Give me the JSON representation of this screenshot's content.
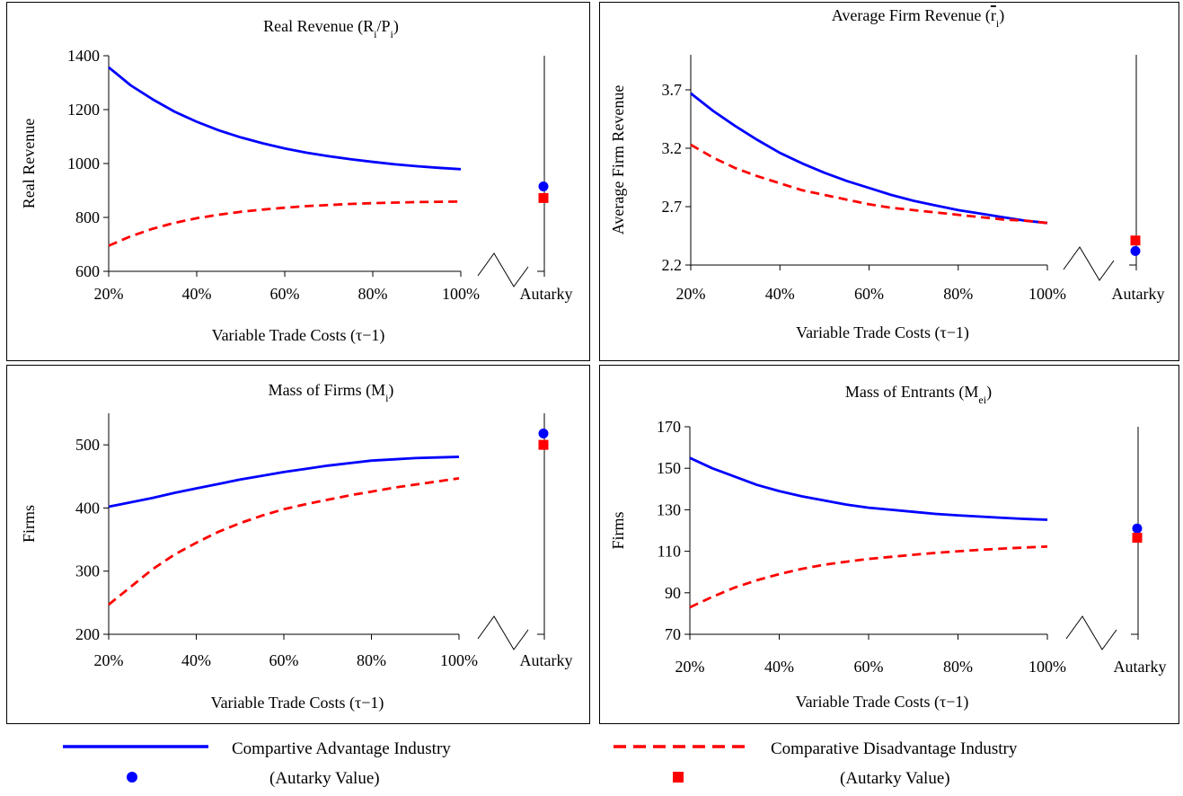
{
  "colors": {
    "advantage": "#0000ff",
    "disadvantage": "#ff0000",
    "axis": "#000000"
  },
  "legend": {
    "advantage_label": "Compartive Advantage Industry",
    "advantage_autarky_label": "(Autarky Value)",
    "disadvantage_label": "Comparative Disadvantage Industry",
    "disadvantage_autarky_label": "(Autarky Value)"
  },
  "chart_data": [
    {
      "id": "real-revenue",
      "type": "line",
      "title": "Real Revenue (R",
      "title_parts": [
        {
          "t": "Real Revenue (R"
        },
        {
          "t": "i",
          "sub": true
        },
        {
          "t": "/P"
        },
        {
          "t": "i",
          "sub": true
        },
        {
          "t": ")"
        }
      ],
      "xlabel": "Variable Trade Costs (τ−1)",
      "ylabel": "Real Revenue",
      "x": [
        20,
        25,
        30,
        35,
        40,
        45,
        50,
        55,
        60,
        65,
        70,
        75,
        80,
        85,
        90,
        95,
        100
      ],
      "x_ticks": [
        "20%",
        "40%",
        "60%",
        "80%",
        "100%"
      ],
      "autarky_label": "Autarky",
      "ylim": [
        600,
        1400
      ],
      "y_ticks": [
        "600",
        "800",
        "1000",
        "1200",
        "1400"
      ],
      "series": [
        {
          "name": "Compartive Advantage Industry",
          "style": "solid",
          "values": [
            1357,
            1290,
            1238,
            1192,
            1155,
            1123,
            1097,
            1075,
            1056,
            1040,
            1027,
            1016,
            1006,
            997,
            990,
            984,
            979
          ]
        },
        {
          "name": "Comparative Disadvantage Industry",
          "style": "dashed",
          "values": [
            695,
            730,
            758,
            780,
            797,
            810,
            821,
            829,
            836,
            842,
            846,
            850,
            853,
            855,
            857,
            858,
            859
          ]
        }
      ],
      "autarky": {
        "advantage": 915,
        "disadvantage": 872
      }
    },
    {
      "id": "average-firm-revenue",
      "type": "line",
      "title": "Average Firm Revenue (r",
      "title_parts": [
        {
          "t": "Average Firm Revenue ("
        },
        {
          "t": "r",
          "bar": true
        },
        {
          "t": "i",
          "sub": true
        },
        {
          "t": ")"
        }
      ],
      "xlabel": "Variable Trade Costs (τ−1)",
      "ylabel": "Average Firm Revenue",
      "x": [
        20,
        25,
        30,
        35,
        40,
        45,
        50,
        55,
        60,
        65,
        70,
        75,
        80,
        85,
        90,
        95,
        100
      ],
      "x_ticks": [
        "20%",
        "40%",
        "60%",
        "80%",
        "100%"
      ],
      "autarky_label": "Autarky",
      "ylim": [
        2.2,
        4.0
      ],
      "y_ticks": [
        "2.2",
        "2.7",
        "3.2",
        "3.7"
      ],
      "y_tick_values": [
        2.2,
        2.7,
        3.2,
        3.7
      ],
      "series": [
        {
          "name": "Compartive Advantage Industry",
          "style": "solid",
          "values": [
            3.67,
            3.52,
            3.39,
            3.27,
            3.16,
            3.07,
            2.99,
            2.92,
            2.86,
            2.8,
            2.75,
            2.71,
            2.67,
            2.64,
            2.61,
            2.58,
            2.56
          ]
        },
        {
          "name": "Comparative Disadvantage Industry",
          "style": "dashed",
          "values": [
            3.23,
            3.12,
            3.03,
            2.96,
            2.9,
            2.84,
            2.8,
            2.76,
            2.72,
            2.69,
            2.67,
            2.65,
            2.63,
            2.61,
            2.59,
            2.58,
            2.56
          ]
        }
      ],
      "autarky": {
        "advantage": 2.32,
        "disadvantage": 2.41
      }
    },
    {
      "id": "mass-of-firms",
      "type": "line",
      "title": "Mass of Firms (M",
      "title_parts": [
        {
          "t": "Mass of Firms (M"
        },
        {
          "t": "i",
          "sub": true
        },
        {
          "t": ")"
        }
      ],
      "xlabel": "Variable Trade Costs (τ−1)",
      "ylabel": "Firms",
      "x": [
        20,
        25,
        30,
        35,
        40,
        45,
        50,
        55,
        60,
        65,
        70,
        75,
        80,
        85,
        90,
        95,
        100
      ],
      "x_ticks": [
        "20%",
        "40%",
        "60%",
        "80%",
        "100%"
      ],
      "autarky_label": "Autarky",
      "ylim": [
        200,
        550
      ],
      "y_ticks": [
        "200",
        "300",
        "400",
        "500"
      ],
      "y_tick_values": [
        200,
        300,
        400,
        500
      ],
      "series": [
        {
          "name": "Compartive Advantage Industry",
          "style": "solid",
          "values": [
            402,
            409,
            416,
            424,
            431,
            438,
            445,
            451,
            457,
            462,
            467,
            471,
            475,
            477,
            479,
            480,
            481
          ]
        },
        {
          "name": "Comparative Disadvantage Industry",
          "style": "dashed",
          "values": [
            247,
            275,
            303,
            326,
            345,
            362,
            376,
            388,
            398,
            406,
            413,
            420,
            426,
            432,
            437,
            442,
            447
          ]
        }
      ],
      "autarky": {
        "advantage": 518,
        "disadvantage": 500
      }
    },
    {
      "id": "mass-of-entrants",
      "type": "line",
      "title": "Mass of Entrants (M",
      "title_parts": [
        {
          "t": "Mass of Entrants (M"
        },
        {
          "t": "ei",
          "sub": true
        },
        {
          "t": ")"
        }
      ],
      "xlabel": "Variable Trade Costs (τ−1)",
      "ylabel": "Firms",
      "x": [
        20,
        25,
        30,
        35,
        40,
        45,
        50,
        55,
        60,
        65,
        70,
        75,
        80,
        85,
        90,
        95,
        100
      ],
      "x_ticks": [
        "20%",
        "40%",
        "60%",
        "80%",
        "100%"
      ],
      "autarky_label": "Autarky",
      "ylim": [
        70,
        170
      ],
      "y_ticks": [
        "70",
        "90",
        "110",
        "130",
        "150",
        "170"
      ],
      "y_tick_values": [
        70,
        90,
        110,
        130,
        150,
        170
      ],
      "series": [
        {
          "name": "Compartive Advantage Industry",
          "style": "solid",
          "values": [
            155,
            150,
            146,
            142,
            139,
            136.5,
            134.5,
            132.5,
            131,
            130,
            129,
            128,
            127.3,
            126.7,
            126.1,
            125.6,
            125.2
          ]
        },
        {
          "name": "Comparative Disadvantage Industry",
          "style": "dashed",
          "values": [
            83,
            88,
            92.5,
            96,
            99,
            101.5,
            103.5,
            105,
            106.3,
            107.3,
            108.3,
            109.2,
            110,
            110.7,
            111.3,
            111.8,
            112.3
          ]
        }
      ],
      "autarky": {
        "advantage": 121,
        "disadvantage": 116.5
      }
    }
  ]
}
